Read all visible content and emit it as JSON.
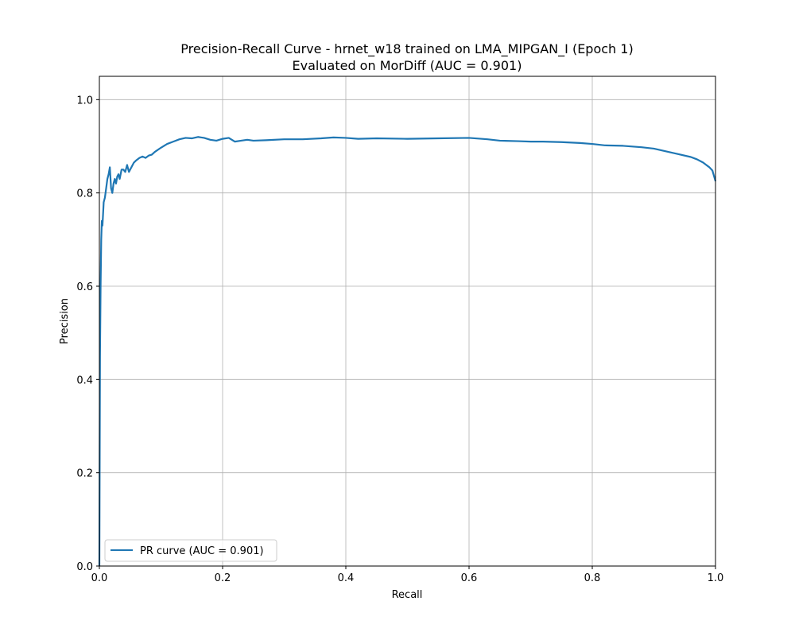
{
  "chart_data": {
    "type": "line",
    "title_line1": "Precision-Recall Curve - hrnet_w18 trained on LMA_MIPGAN_I (Epoch 1)",
    "title_line2": "Evaluated on MorDiff (AUC = 0.901)",
    "xlabel": "Recall",
    "ylabel": "Precision",
    "xlim": [
      0.0,
      1.0
    ],
    "ylim": [
      0.0,
      1.05
    ],
    "xticks": [
      0.0,
      0.2,
      0.4,
      0.6,
      0.8,
      1.0
    ],
    "xtick_labels": [
      "0.0",
      "0.2",
      "0.4",
      "0.6",
      "0.8",
      "1.0"
    ],
    "yticks": [
      0.0,
      0.2,
      0.4,
      0.6,
      0.8,
      1.0
    ],
    "ytick_labels": [
      "0.0",
      "0.2",
      "0.4",
      "0.6",
      "0.8",
      "1.0"
    ],
    "grid": true,
    "legend_position": "lower-left",
    "series": [
      {
        "name": "PR curve (AUC = 0.901)",
        "color": "#1f77b4",
        "x": [
          0.0,
          0.001,
          0.002,
          0.003,
          0.004,
          0.005,
          0.007,
          0.009,
          0.011,
          0.013,
          0.015,
          0.017,
          0.019,
          0.021,
          0.023,
          0.025,
          0.027,
          0.029,
          0.031,
          0.033,
          0.036,
          0.039,
          0.042,
          0.045,
          0.048,
          0.052,
          0.056,
          0.06,
          0.065,
          0.07,
          0.075,
          0.08,
          0.085,
          0.09,
          0.1,
          0.11,
          0.12,
          0.13,
          0.14,
          0.15,
          0.16,
          0.17,
          0.18,
          0.19,
          0.2,
          0.21,
          0.22,
          0.23,
          0.24,
          0.25,
          0.27,
          0.3,
          0.33,
          0.36,
          0.38,
          0.4,
          0.42,
          0.45,
          0.5,
          0.55,
          0.6,
          0.63,
          0.65,
          0.68,
          0.7,
          0.72,
          0.75,
          0.78,
          0.8,
          0.82,
          0.85,
          0.88,
          0.9,
          0.92,
          0.94,
          0.96,
          0.97,
          0.98,
          0.99,
          0.995,
          1.0
        ],
        "y": [
          0.0,
          0.45,
          0.6,
          0.7,
          0.74,
          0.73,
          0.78,
          0.79,
          0.81,
          0.83,
          0.84,
          0.855,
          0.81,
          0.8,
          0.82,
          0.83,
          0.82,
          0.835,
          0.84,
          0.83,
          0.85,
          0.85,
          0.845,
          0.86,
          0.845,
          0.855,
          0.865,
          0.87,
          0.875,
          0.878,
          0.875,
          0.88,
          0.882,
          0.888,
          0.897,
          0.905,
          0.91,
          0.915,
          0.918,
          0.917,
          0.92,
          0.918,
          0.914,
          0.912,
          0.916,
          0.918,
          0.91,
          0.912,
          0.914,
          0.912,
          0.913,
          0.915,
          0.915,
          0.917,
          0.919,
          0.918,
          0.916,
          0.917,
          0.916,
          0.917,
          0.918,
          0.915,
          0.912,
          0.911,
          0.91,
          0.91,
          0.909,
          0.907,
          0.905,
          0.902,
          0.901,
          0.898,
          0.895,
          0.889,
          0.883,
          0.877,
          0.872,
          0.865,
          0.855,
          0.848,
          0.825
        ]
      }
    ]
  }
}
